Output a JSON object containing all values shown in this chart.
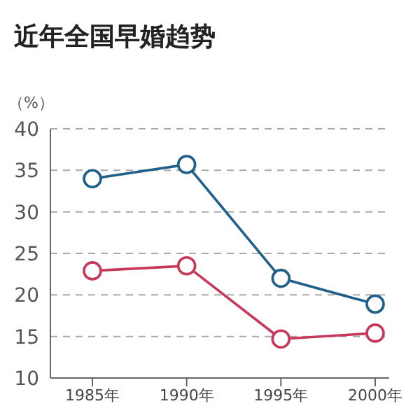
{
  "chart_data": {
    "type": "line",
    "title": "近年全国早婚趋势",
    "ylabel": "（%）",
    "categories": [
      "1985年",
      "1990年",
      "1995年",
      "2000年"
    ],
    "series": [
      {
        "color": "#1f5f8b",
        "values": [
          34,
          35.7,
          22,
          18.9
        ]
      },
      {
        "color": "#c8385a",
        "values": [
          22.9,
          23.5,
          14.7,
          15.4
        ]
      }
    ],
    "ylim": [
      10,
      40
    ],
    "yticks": [
      10,
      15,
      20,
      25,
      30,
      35,
      40
    ],
    "grid": "y",
    "marker": "circle",
    "line_style": "solid"
  }
}
